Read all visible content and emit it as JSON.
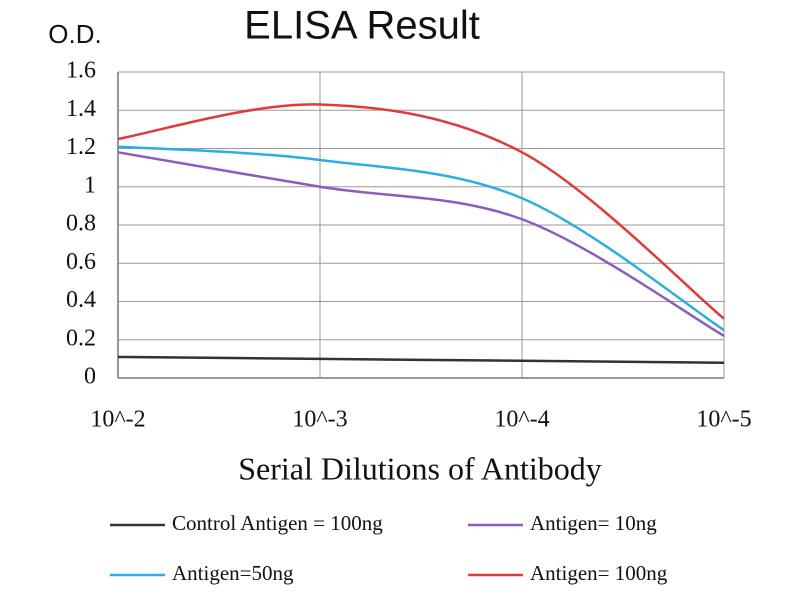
{
  "chart_data": {
    "type": "line",
    "title": "ELISA Result",
    "y_label": "O.D.",
    "x_label": "Serial Dilutions of Antibody",
    "categories": [
      "10^-2",
      "10^-3",
      "10^-4",
      "10^-5"
    ],
    "series": [
      {
        "name": "Control Antigen = 100ng",
        "color": "#333333",
        "values": [
          0.11,
          0.1,
          0.09,
          0.08
        ]
      },
      {
        "name": "Antigen= 10ng",
        "color": "#8a5cc0",
        "values": [
          1.18,
          1.0,
          0.83,
          0.22
        ]
      },
      {
        "name": "Antigen=50ng",
        "color": "#2ab0e0",
        "values": [
          1.21,
          1.14,
          0.94,
          0.25
        ]
      },
      {
        "name": "Antigen= 100ng",
        "color": "#e03a3a",
        "values": [
          1.25,
          1.43,
          1.18,
          0.31
        ]
      }
    ],
    "ylim": [
      0,
      1.6
    ],
    "yticks": [
      0,
      0.2,
      0.4,
      0.6,
      0.8,
      1,
      1.2,
      1.4,
      1.6
    ],
    "grid": true,
    "smooth": true
  }
}
